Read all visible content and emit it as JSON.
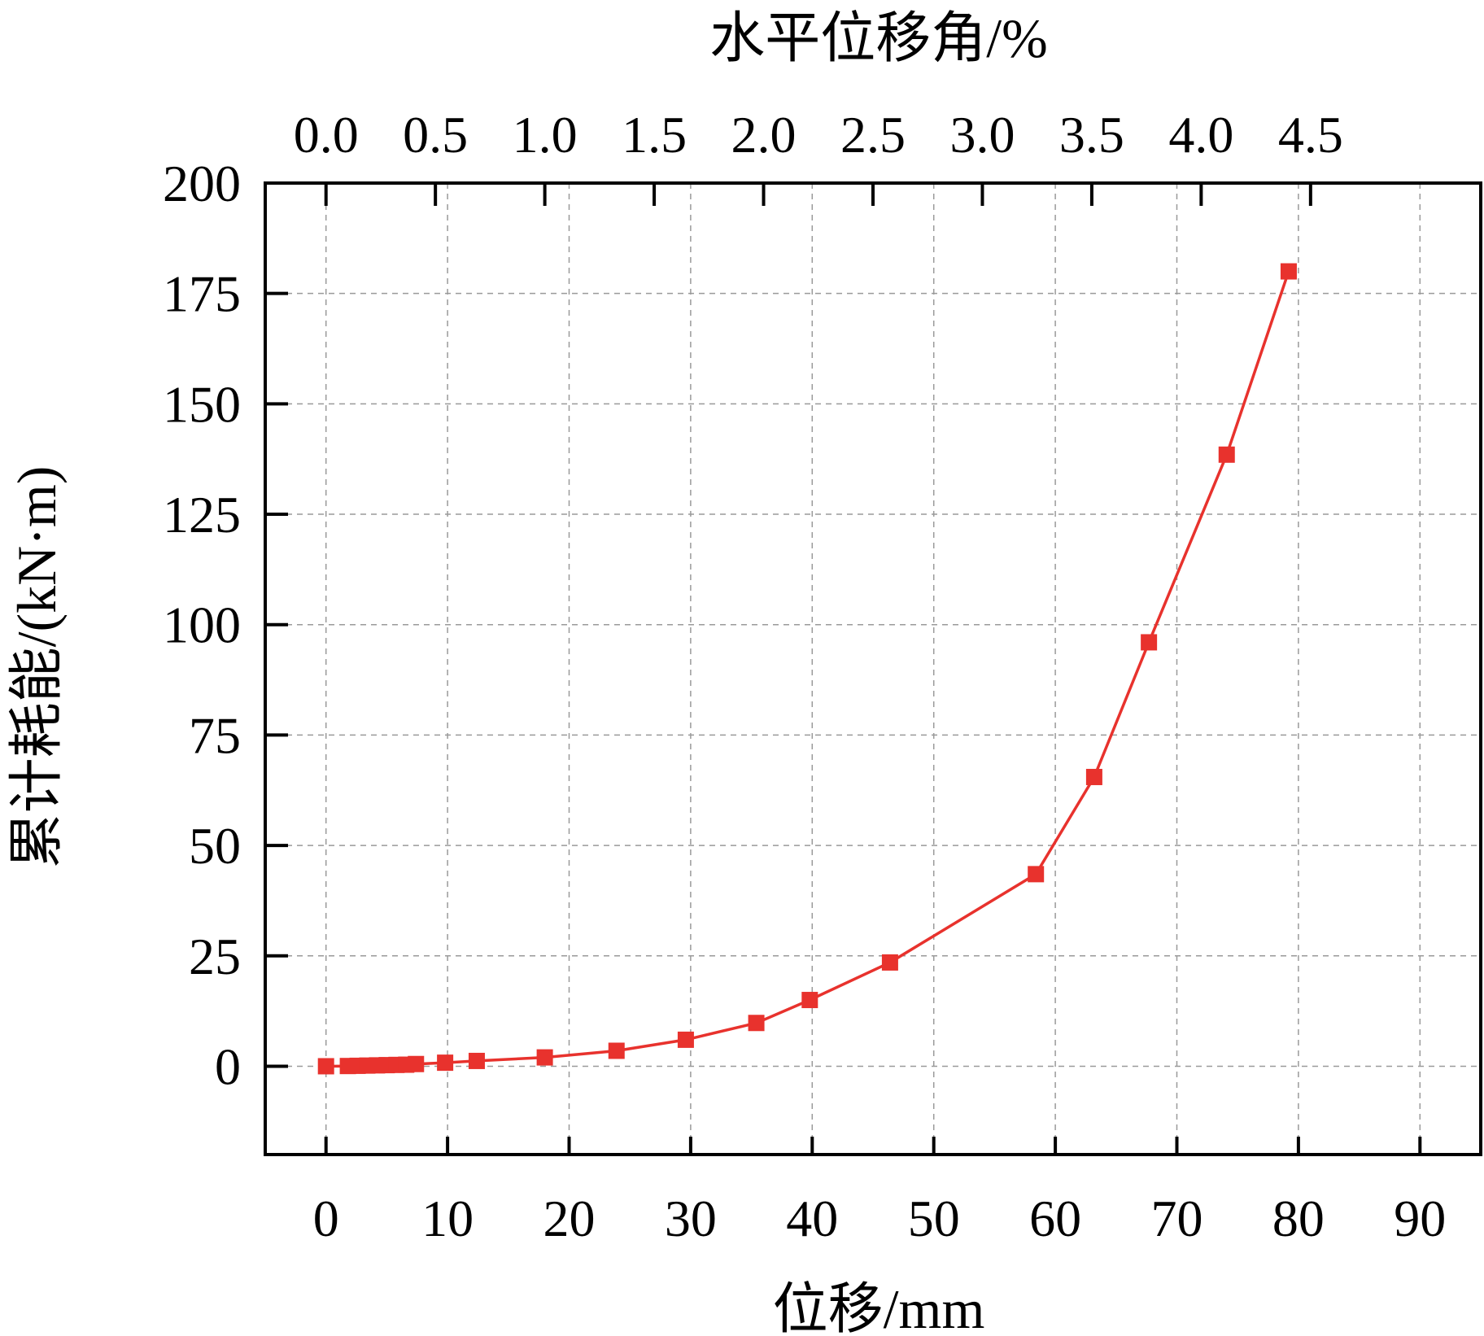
{
  "chart_data": {
    "type": "line",
    "top_axis_title": "水平位移角/%",
    "xlabel": "位移/mm",
    "ylabel": "累计耗能/(kN·m)",
    "xlim": [
      -5,
      95
    ],
    "ylim": [
      -20,
      200
    ],
    "top_xlim": [
      -0.2778,
      5.2778
    ],
    "x_ticks": [
      0,
      10,
      20,
      30,
      40,
      50,
      60,
      70,
      80,
      90
    ],
    "y_ticks": [
      0,
      25,
      50,
      75,
      100,
      125,
      150,
      175,
      200
    ],
    "top_x_ticks": [
      {
        "value": 0.0,
        "label": "0.0"
      },
      {
        "value": 0.5,
        "label": "0.5"
      },
      {
        "value": 1.0,
        "label": "1.0"
      },
      {
        "value": 1.5,
        "label": "1.5"
      },
      {
        "value": 2.0,
        "label": "2.0"
      },
      {
        "value": 2.5,
        "label": "2.5"
      },
      {
        "value": 3.0,
        "label": "3.0"
      },
      {
        "value": 3.5,
        "label": "3.5"
      },
      {
        "value": 4.0,
        "label": "4.0"
      },
      {
        "value": 4.5,
        "label": "4.5"
      }
    ],
    "grid": true,
    "series": [
      {
        "color": "#e8322d",
        "marker": "square",
        "x": [
          0,
          1.8,
          2.6,
          3.4,
          4.2,
          5.0,
          5.8,
          6.6,
          7.4,
          9.8,
          12.4,
          18.0,
          23.9,
          29.6,
          35.4,
          39.8,
          46.4,
          58.4,
          63.2,
          67.7,
          74.1,
          79.2
        ],
        "y": [
          0,
          0.05,
          0.1,
          0.15,
          0.2,
          0.25,
          0.3,
          0.35,
          0.5,
          0.8,
          1.2,
          2.0,
          3.5,
          6.0,
          9.8,
          15.0,
          23.5,
          43.5,
          65.5,
          96.0,
          138.5,
          180.0
        ]
      }
    ]
  }
}
